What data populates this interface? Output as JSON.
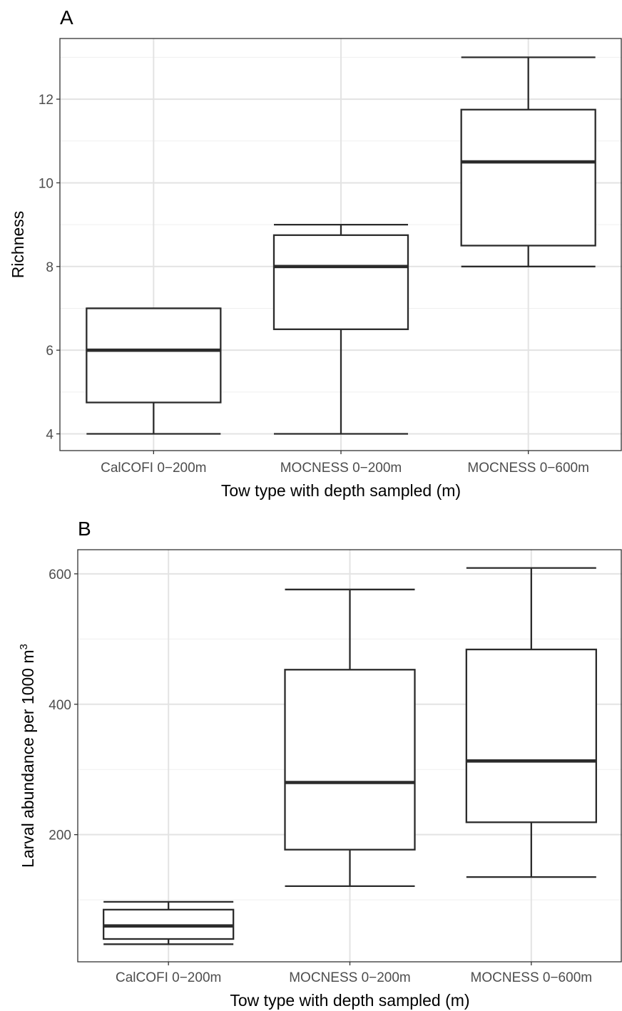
{
  "chart_data": [
    {
      "panel": "A",
      "type": "box",
      "xlabel": "Tow type with depth sampled (m)",
      "ylabel": "Richness",
      "ylabel_sup": "",
      "ylim": [
        3.6,
        13.45
      ],
      "y_major_ticks": [
        4,
        6,
        8,
        10,
        12
      ],
      "y_minor_ticks": [
        5,
        7,
        9,
        11,
        13
      ],
      "grid": true,
      "categories": [
        "CalCOFI 0−200m",
        "MOCNESS 0−200m",
        "MOCNESS 0−600m"
      ],
      "boxes": [
        {
          "lower_whisker": 4,
          "q1": 4.75,
          "median": 6,
          "q3": 7,
          "upper_whisker": 7
        },
        {
          "lower_whisker": 4,
          "q1": 6.5,
          "median": 8,
          "q3": 8.75,
          "upper_whisker": 9
        },
        {
          "lower_whisker": 8,
          "q1": 8.5,
          "median": 10.5,
          "q3": 11.75,
          "upper_whisker": 13
        }
      ]
    },
    {
      "panel": "B",
      "type": "box",
      "xlabel": "Tow type with depth sampled (m)",
      "ylabel": "Larval abundance per 1000 m",
      "ylabel_sup": "3",
      "ylim": [
        5,
        637
      ],
      "y_major_ticks": [
        200,
        400,
        600
      ],
      "y_minor_ticks": [
        100,
        300,
        500
      ],
      "grid": true,
      "categories": [
        "CalCOFI 0−200m",
        "MOCNESS 0−200m",
        "MOCNESS 0−600m"
      ],
      "boxes": [
        {
          "lower_whisker": 32,
          "q1": 40,
          "median": 60,
          "q3": 85,
          "upper_whisker": 97
        },
        {
          "lower_whisker": 121,
          "q1": 177,
          "median": 280,
          "q3": 453,
          "upper_whisker": 576
        },
        {
          "lower_whisker": 135,
          "q1": 219,
          "median": 313,
          "q3": 484,
          "upper_whisker": 609
        }
      ]
    }
  ]
}
